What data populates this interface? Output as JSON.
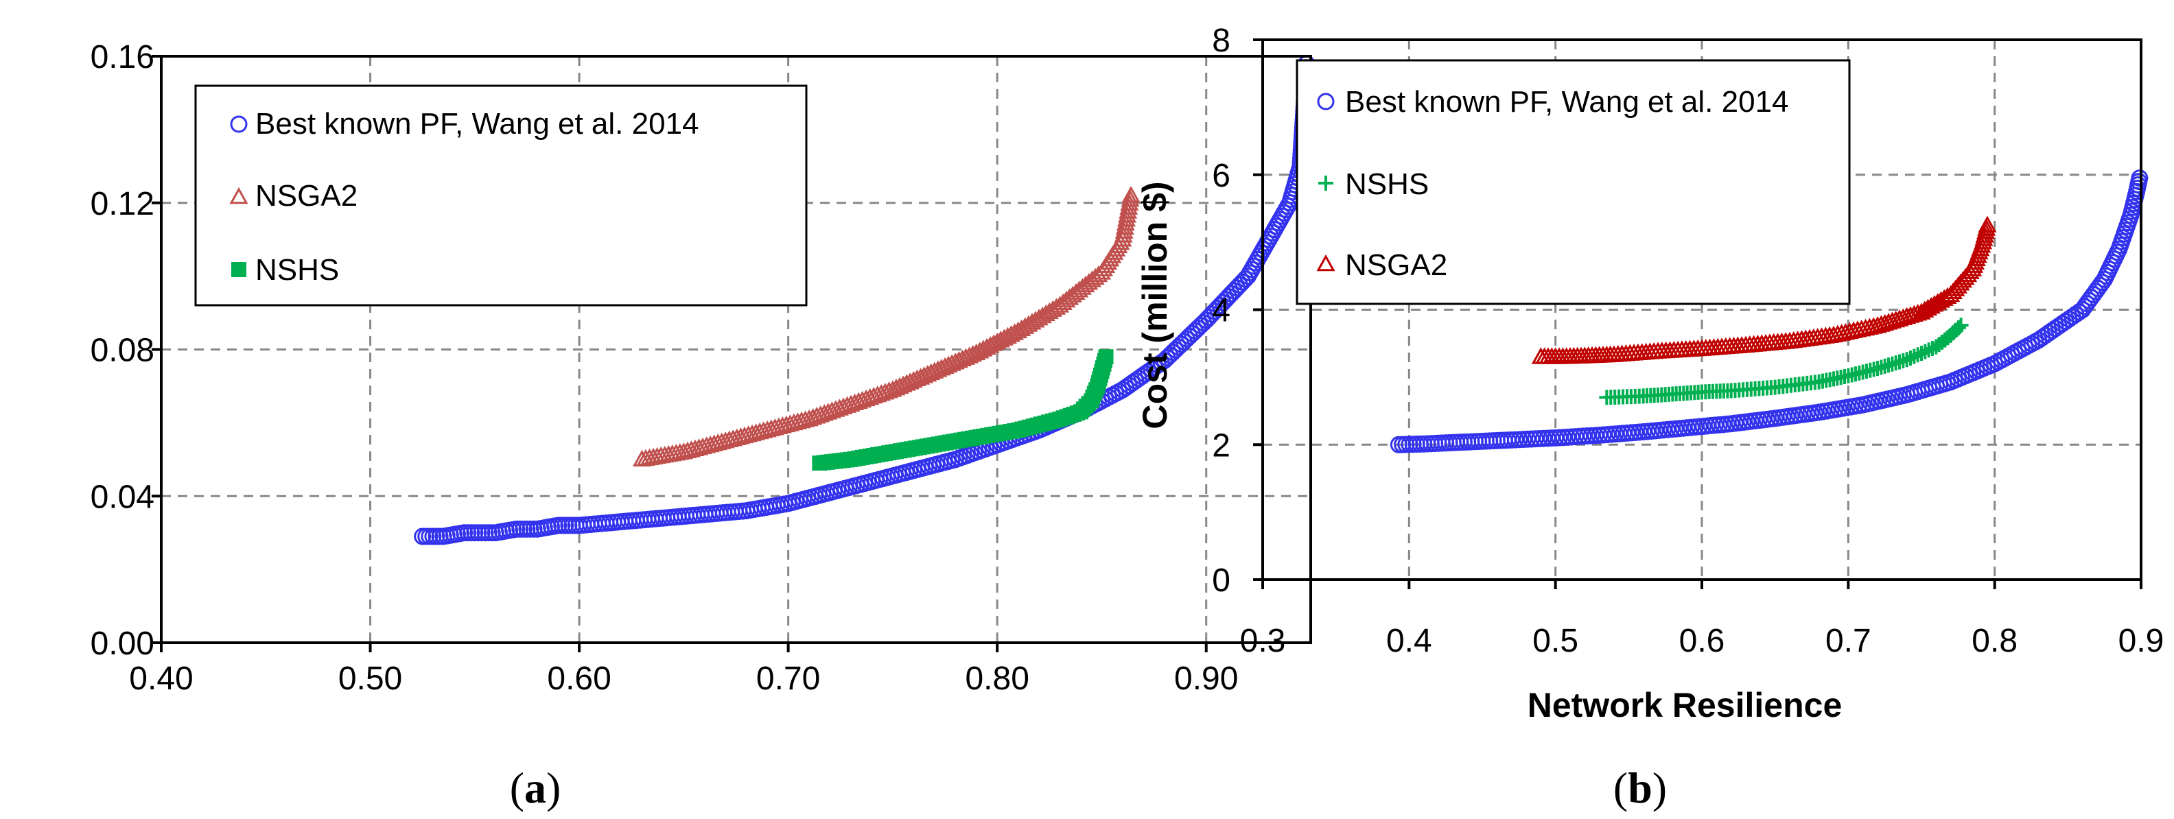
{
  "chart_data": [
    {
      "type": "scatter",
      "panel": "a",
      "title": "",
      "xlabel": "",
      "ylabel": "",
      "xlim": [
        0.4,
        0.95
      ],
      "ylim": [
        0.0,
        0.16
      ],
      "grid": true,
      "legend_position": "top-left",
      "x_ticks": [
        0.4,
        0.5,
        0.6,
        0.7,
        0.8,
        0.9
      ],
      "x_tick_labels": [
        "0.40",
        "0.50",
        "0.60",
        "0.70",
        "0.80",
        "0.90"
      ],
      "y_ticks": [
        0.0,
        0.04,
        0.08,
        0.12,
        0.16
      ],
      "y_tick_labels": [
        "0.00",
        "0.04",
        "0.08",
        "0.12",
        "0.16"
      ],
      "series": [
        {
          "name": "Best known PF, Wang et al. 2014",
          "marker": "circle-open",
          "color": "#3333ee",
          "points": [
            [
              0.525,
              0.029
            ],
            [
              0.53,
              0.029
            ],
            [
              0.535,
              0.029
            ],
            [
              0.545,
              0.03
            ],
            [
              0.55,
              0.03
            ],
            [
              0.56,
              0.03
            ],
            [
              0.57,
              0.031
            ],
            [
              0.58,
              0.031
            ],
            [
              0.59,
              0.032
            ],
            [
              0.6,
              0.032
            ],
            [
              0.62,
              0.033
            ],
            [
              0.64,
              0.034
            ],
            [
              0.66,
              0.035
            ],
            [
              0.68,
              0.036
            ],
            [
              0.7,
              0.038
            ],
            [
              0.72,
              0.041
            ],
            [
              0.74,
              0.044
            ],
            [
              0.76,
              0.047
            ],
            [
              0.78,
              0.05
            ],
            [
              0.8,
              0.054
            ],
            [
              0.82,
              0.058
            ],
            [
              0.84,
              0.063
            ],
            [
              0.86,
              0.069
            ],
            [
              0.88,
              0.077
            ],
            [
              0.9,
              0.088
            ],
            [
              0.92,
              0.1
            ],
            [
              0.93,
              0.11
            ],
            [
              0.94,
              0.12
            ],
            [
              0.945,
              0.13
            ],
            [
              0.947,
              0.148
            ],
            [
              0.948,
              0.158
            ]
          ]
        },
        {
          "name": "NSGA2",
          "marker": "triangle-open",
          "color": "#c0504d",
          "points": [
            [
              0.63,
              0.05
            ],
            [
              0.65,
              0.052
            ],
            [
              0.67,
              0.055
            ],
            [
              0.69,
              0.058
            ],
            [
              0.71,
              0.061
            ],
            [
              0.73,
              0.065
            ],
            [
              0.75,
              0.069
            ],
            [
              0.77,
              0.074
            ],
            [
              0.79,
              0.079
            ],
            [
              0.81,
              0.085
            ],
            [
              0.83,
              0.092
            ],
            [
              0.85,
              0.101
            ],
            [
              0.86,
              0.11
            ],
            [
              0.864,
              0.122
            ]
          ]
        },
        {
          "name": "NSHS",
          "marker": "square-filled",
          "color": "#00b050",
          "points": [
            [
              0.715,
              0.049
            ],
            [
              0.73,
              0.05
            ],
            [
              0.75,
              0.052
            ],
            [
              0.77,
              0.054
            ],
            [
              0.79,
              0.056
            ],
            [
              0.81,
              0.058
            ],
            [
              0.83,
              0.061
            ],
            [
              0.84,
              0.063
            ],
            [
              0.845,
              0.066
            ],
            [
              0.848,
              0.07
            ],
            [
              0.85,
              0.074
            ],
            [
              0.852,
              0.078
            ]
          ]
        }
      ]
    },
    {
      "type": "scatter",
      "panel": "b",
      "title": "",
      "xlabel": "Network Resilience",
      "ylabel": "Cost (million $)",
      "xlim": [
        0.3,
        0.9
      ],
      "ylim": [
        0,
        8
      ],
      "grid": true,
      "legend_position": "top-left",
      "x_ticks": [
        0.3,
        0.4,
        0.5,
        0.6,
        0.7,
        0.8,
        0.9
      ],
      "x_tick_labels": [
        "0.3",
        "0.4",
        "0.5",
        "0.6",
        "0.7",
        "0.8",
        "0.9"
      ],
      "y_ticks": [
        0,
        2,
        4,
        6,
        8
      ],
      "y_tick_labels": [
        "0",
        "2",
        "4",
        "6",
        "8"
      ],
      "series": [
        {
          "name": "Best known PF, Wang et al. 2014",
          "marker": "circle-open",
          "color": "#3333ee",
          "points": [
            [
              0.393,
              2.0
            ],
            [
              0.41,
              2.01
            ],
            [
              0.43,
              2.03
            ],
            [
              0.45,
              2.05
            ],
            [
              0.47,
              2.07
            ],
            [
              0.5,
              2.1
            ],
            [
              0.53,
              2.14
            ],
            [
              0.56,
              2.19
            ],
            [
              0.59,
              2.25
            ],
            [
              0.62,
              2.31
            ],
            [
              0.65,
              2.39
            ],
            [
              0.68,
              2.48
            ],
            [
              0.71,
              2.59
            ],
            [
              0.74,
              2.74
            ],
            [
              0.77,
              2.93
            ],
            [
              0.8,
              3.2
            ],
            [
              0.83,
              3.55
            ],
            [
              0.86,
              4.0
            ],
            [
              0.875,
              4.45
            ],
            [
              0.885,
              4.9
            ],
            [
              0.893,
              5.4
            ],
            [
              0.897,
              5.75
            ],
            [
              0.899,
              5.95
            ]
          ]
        },
        {
          "name": "NSHS",
          "marker": "plus",
          "color": "#00b050",
          "points": [
            [
              0.535,
              2.7
            ],
            [
              0.56,
              2.72
            ],
            [
              0.58,
              2.75
            ],
            [
              0.6,
              2.78
            ],
            [
              0.62,
              2.8
            ],
            [
              0.65,
              2.85
            ],
            [
              0.68,
              2.93
            ],
            [
              0.7,
              3.02
            ],
            [
              0.72,
              3.13
            ],
            [
              0.74,
              3.26
            ],
            [
              0.76,
              3.45
            ],
            [
              0.77,
              3.62
            ],
            [
              0.777,
              3.77
            ]
          ]
        },
        {
          "name": "NSGA2",
          "marker": "triangle-open",
          "color": "#c00000",
          "points": [
            [
              0.49,
              3.3
            ],
            [
              0.505,
              3.3
            ],
            [
              0.52,
              3.31
            ],
            [
              0.54,
              3.33
            ],
            [
              0.57,
              3.38
            ],
            [
              0.6,
              3.42
            ],
            [
              0.63,
              3.47
            ],
            [
              0.66,
              3.53
            ],
            [
              0.69,
              3.62
            ],
            [
              0.72,
              3.76
            ],
            [
              0.75,
              3.96
            ],
            [
              0.77,
              4.22
            ],
            [
              0.785,
              4.6
            ],
            [
              0.792,
              5.0
            ],
            [
              0.795,
              5.25
            ]
          ]
        }
      ]
    }
  ],
  "panels": {
    "a": {
      "label_open": "(",
      "label_letter": "a",
      "label_close": ")"
    },
    "b": {
      "label_open": "(",
      "label_letter": "b",
      "label_close": ")"
    }
  }
}
